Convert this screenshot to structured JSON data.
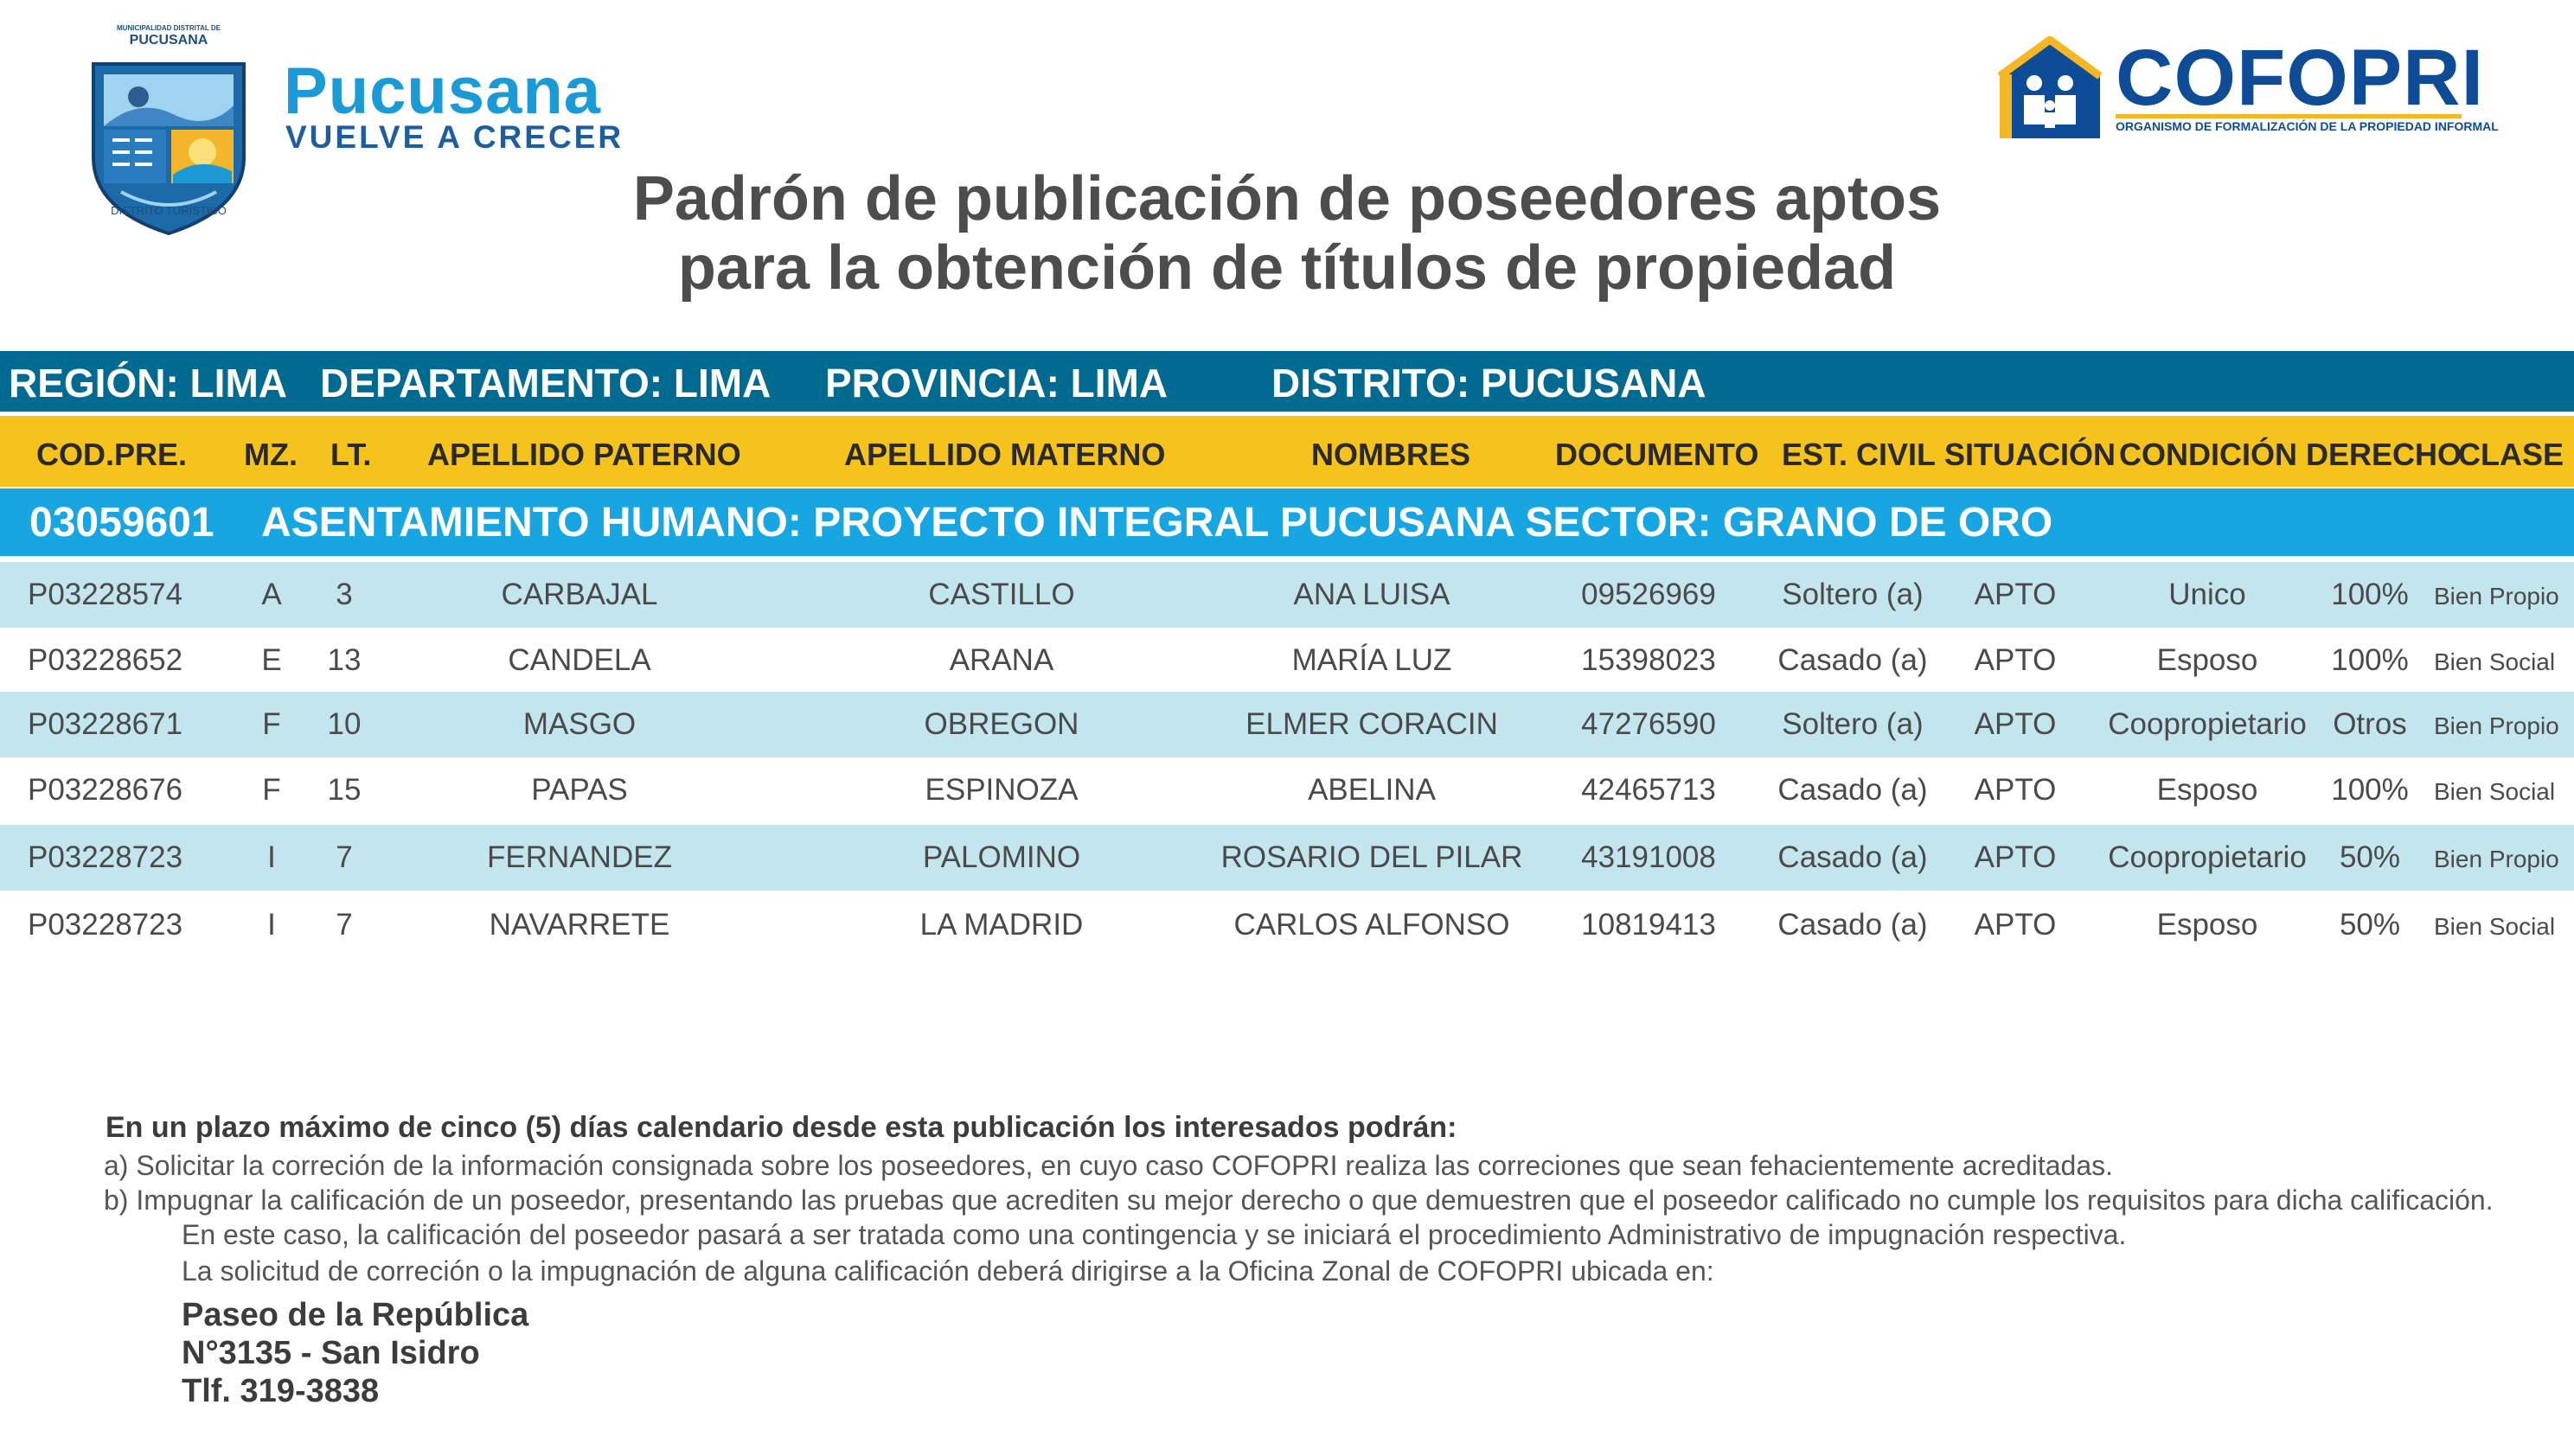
{
  "logos": {
    "pucusana": {
      "shield_top_text": "MUNICIPALIDAD DISTRITAL DE",
      "shield_name": "PUCUSANA",
      "shield_bottom_text": "DISTRITO TURÍSTICO",
      "name": "Pucusana",
      "tagline": "VUELVE A CRECER"
    },
    "cofopri": {
      "name": "COFOPRI",
      "subtitle": "ORGANISMO DE FORMALIZACIÓN DE LA PROPIEDAD INFORMAL"
    }
  },
  "title": {
    "line1": "Padrón de publicación de poseedores aptos",
    "line2": "para la obtención de títulos de propiedad"
  },
  "region_bar": {
    "region": "REGIÓN: LIMA",
    "departamento": "DEPARTAMENTO: LIMA",
    "provincia": "PROVINCIA: LIMA",
    "distrito": "DISTRITO: PUCUSANA"
  },
  "columns": {
    "cod_pre": "COD.PRE.",
    "mz": "MZ.",
    "lt": "LT.",
    "apellido_paterno": "APELLIDO PATERNO",
    "apellido_materno": "APELLIDO MATERNO",
    "nombres": "NOMBRES",
    "documento": "DOCUMENTO",
    "est_civil": "EST. CIVIL",
    "situacion": "SITUACIÓN",
    "condicion_derecho": "CONDICIÓN DERECHO",
    "clase": "CLASE"
  },
  "sector": {
    "code": "03059601",
    "name": "ASENTAMIENTO HUMANO: PROYECTO INTEGRAL PUCUSANA SECTOR: GRANO DE ORO"
  },
  "rows": [
    {
      "cod": "P03228574",
      "mz": "A",
      "lt": "3",
      "paterno": "CARBAJAL",
      "materno": "CASTILLO",
      "nombres": "ANA LUISA",
      "doc": "09526969",
      "civil": "Soltero (a)",
      "situacion": "APTO",
      "condicion": "Unico",
      "derecho": "100%",
      "clase": "Bien Propio"
    },
    {
      "cod": "P03228652",
      "mz": "E",
      "lt": "13",
      "paterno": "CANDELA",
      "materno": "ARANA",
      "nombres": "MARÍA LUZ",
      "doc": "15398023",
      "civil": "Casado (a)",
      "situacion": "APTO",
      "condicion": "Esposo",
      "derecho": "100%",
      "clase": "Bien Social"
    },
    {
      "cod": "P03228671",
      "mz": "F",
      "lt": "10",
      "paterno": "MASGO",
      "materno": "OBREGON",
      "nombres": "ELMER CORACIN",
      "doc": "47276590",
      "civil": "Soltero (a)",
      "situacion": "APTO",
      "condicion": "Coopropietario",
      "derecho": "Otros",
      "clase": "Bien Propio"
    },
    {
      "cod": "P03228676",
      "mz": "F",
      "lt": "15",
      "paterno": "PAPAS",
      "materno": "ESPINOZA",
      "nombres": "ABELINA",
      "doc": "42465713",
      "civil": "Casado (a)",
      "situacion": "APTO",
      "condicion": "Esposo",
      "derecho": "100%",
      "clase": "Bien Social"
    },
    {
      "cod": "P03228723",
      "mz": "I",
      "lt": "7",
      "paterno": "FERNANDEZ",
      "materno": "PALOMINO",
      "nombres": "ROSARIO DEL PILAR",
      "doc": "43191008",
      "civil": "Casado (a)",
      "situacion": "APTO",
      "condicion": "Coopropietario",
      "derecho": "50%",
      "clase": "Bien Propio"
    },
    {
      "cod": "P03228723",
      "mz": "I",
      "lt": "7",
      "paterno": "NAVARRETE",
      "materno": "LA MADRID",
      "nombres": "CARLOS ALFONSO",
      "doc": "10819413",
      "civil": "Casado (a)",
      "situacion": "APTO",
      "condicion": "Esposo",
      "derecho": "50%",
      "clase": "Bien Social"
    }
  ],
  "notice": {
    "heading": "En un plazo máximo de cinco (5) días calendario desde esta publicación los interesados podrán:",
    "a": "a) Solicitar la correción de la información consignada sobre los poseedores, en cuyo caso COFOPRI realiza las correciones que sean fehacientemente acreditadas.",
    "b": "b) Impugnar la calificación de un poseedor, presentando las pruebas que acrediten su mejor derecho o que  demuestren que el poseedor calificado no cumple los requisitos para dicha calificación.",
    "b2": "En este caso, la calificación del poseedor pasará a ser tratada como una contingencia y se iniciará el procedimiento Administrativo de impugnación respectiva.",
    "b3": "La solicitud de correción o la impugnación de alguna calificación deberá dirigirse a la Oficina Zonal de COFOPRI ubicada en:"
  },
  "address": {
    "line1": "Paseo de la República",
    "line2": "N°3135 - San Isidro",
    "line3": "Tlf. 319-3838"
  }
}
